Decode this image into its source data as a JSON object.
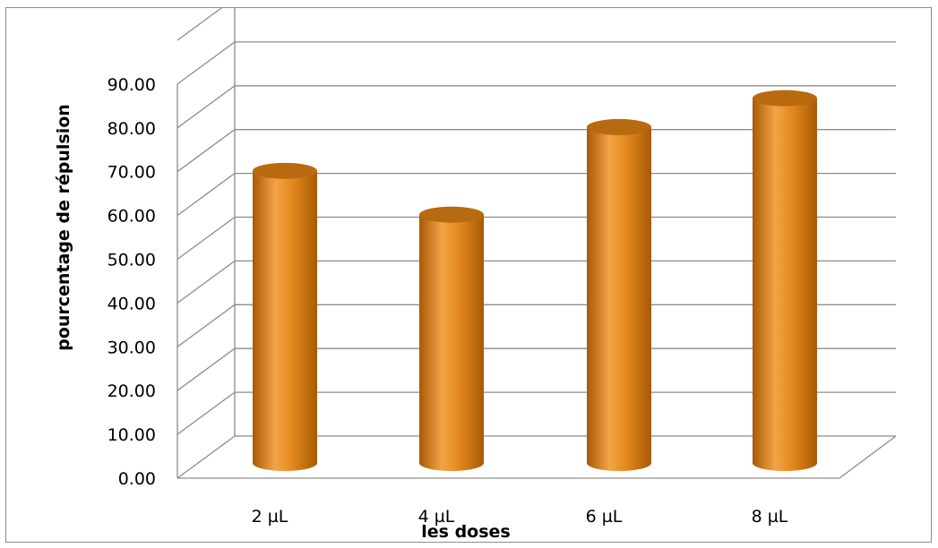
{
  "chart_data": {
    "type": "bar",
    "style": "3d-cylinder",
    "categories": [
      "2 µL",
      "4 µL",
      "6 µL",
      "8 µL"
    ],
    "values": [
      66.7,
      56.7,
      76.7,
      83.3
    ],
    "xlabel": "les doses",
    "ylabel": "pourcentage de répulsion",
    "ylim": [
      0,
      100
    ],
    "yticks": [
      "0.00",
      "10.00",
      "20.00",
      "30.00",
      "40.00",
      "50.00",
      "60.00",
      "70.00",
      "80.00",
      "90.00"
    ],
    "grid": true,
    "legend": "none",
    "colors": {
      "bar": "#e58a1e",
      "bar_dark": "#a85a05",
      "bar_light": "#f3a447",
      "top": "#b86a10",
      "grid": "#8c8c8c"
    }
  }
}
